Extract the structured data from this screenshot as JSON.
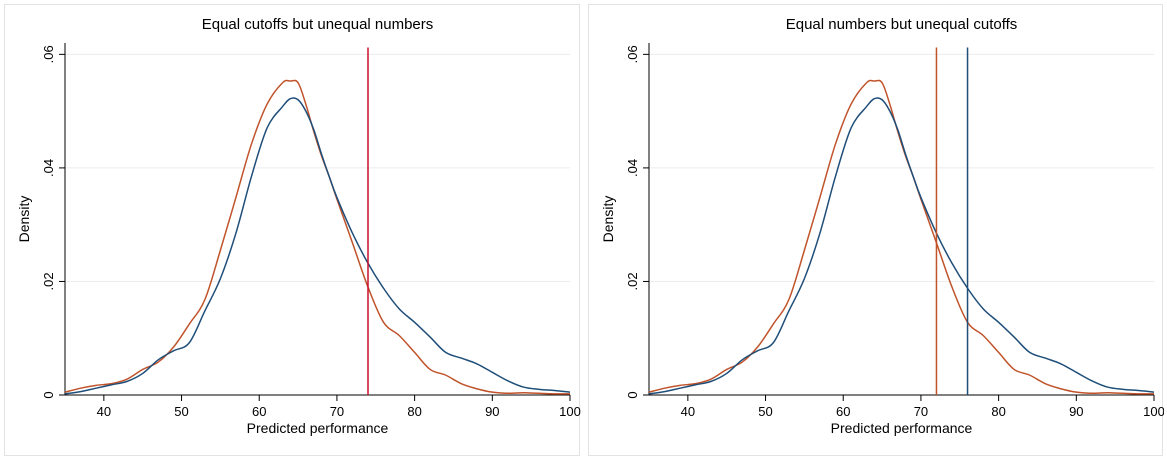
{
  "chart_data": [
    {
      "type": "line",
      "title": "Equal cutoffs but unequal numbers",
      "xlabel": "Predicted performance",
      "ylabel": "Density",
      "xlim": [
        35,
        100
      ],
      "ylim": [
        0,
        0.062
      ],
      "xticks": [
        40,
        50,
        60,
        70,
        80,
        90,
        100
      ],
      "xtick_labels": [
        "40",
        "50",
        "60",
        "70",
        "80",
        "90",
        "100"
      ],
      "yticks": [
        0,
        0.02,
        0.04,
        0.06
      ],
      "ytick_labels": [
        "0",
        ".02",
        ".04",
        ".06"
      ],
      "grid": "horizontal",
      "series": [
        {
          "color": "#c0532a",
          "x": [
            35,
            37,
            39,
            41,
            43,
            45,
            47,
            49,
            51,
            53,
            55,
            57,
            59,
            61,
            63,
            64,
            65,
            66,
            67,
            68,
            69,
            70,
            72,
            74,
            76,
            78,
            80,
            82,
            84,
            86,
            88,
            90,
            92,
            94,
            96,
            98,
            100
          ],
          "y": [
            0.0005,
            0.0012,
            0.0017,
            0.002,
            0.0028,
            0.0045,
            0.0058,
            0.0085,
            0.0125,
            0.0168,
            0.0255,
            0.0348,
            0.0442,
            0.0512,
            0.055,
            0.0553,
            0.055,
            0.0512,
            0.0465,
            0.0422,
            0.0385,
            0.0345,
            0.0268,
            0.019,
            0.0128,
            0.0105,
            0.0075,
            0.0045,
            0.0035,
            0.002,
            0.0011,
            0.0005,
            0.0003,
            0.0004,
            0.0003,
            0.0002,
            0.0002
          ]
        },
        {
          "color": "#1f4e79",
          "x": [
            35,
            37,
            39,
            41,
            43,
            45,
            47,
            49,
            51,
            53,
            55,
            57,
            59,
            61,
            63,
            64,
            65,
            66,
            67,
            68,
            69,
            70,
            72,
            74,
            76,
            78,
            80,
            82,
            84,
            86,
            88,
            90,
            92,
            94,
            96,
            98,
            100
          ],
          "y": [
            0.0002,
            0.0006,
            0.0012,
            0.0018,
            0.0024,
            0.0038,
            0.0062,
            0.0078,
            0.0092,
            0.0148,
            0.0205,
            0.0285,
            0.0385,
            0.047,
            0.0508,
            0.0522,
            0.052,
            0.05,
            0.0468,
            0.0425,
            0.0385,
            0.0348,
            0.0285,
            0.0232,
            0.0188,
            0.0152,
            0.0128,
            0.0102,
            0.0075,
            0.0065,
            0.0055,
            0.004,
            0.0025,
            0.0014,
            0.001,
            0.0008,
            0.0005
          ]
        }
      ],
      "vlines": [
        {
          "x": 74,
          "color": "#c8102e"
        }
      ]
    },
    {
      "type": "line",
      "title": "Equal numbers but unequal cutoffs",
      "xlabel": "Predicted performance",
      "ylabel": "Density",
      "xlim": [
        35,
        100
      ],
      "ylim": [
        0,
        0.062
      ],
      "xticks": [
        40,
        50,
        60,
        70,
        80,
        90,
        100
      ],
      "xtick_labels": [
        "40",
        "50",
        "60",
        "70",
        "80",
        "90",
        "100"
      ],
      "yticks": [
        0,
        0.02,
        0.04,
        0.06
      ],
      "ytick_labels": [
        "0",
        ".02",
        ".04",
        ".06"
      ],
      "grid": "horizontal",
      "series": [
        {
          "color": "#c0532a",
          "x": [
            35,
            37,
            39,
            41,
            43,
            45,
            47,
            49,
            51,
            53,
            55,
            57,
            59,
            61,
            63,
            64,
            65,
            66,
            67,
            68,
            69,
            70,
            72,
            74,
            76,
            78,
            80,
            82,
            84,
            86,
            88,
            90,
            92,
            94,
            96,
            98,
            100
          ],
          "y": [
            0.0005,
            0.0012,
            0.0017,
            0.002,
            0.0028,
            0.0045,
            0.0058,
            0.0085,
            0.0125,
            0.0168,
            0.0255,
            0.0348,
            0.0442,
            0.0512,
            0.055,
            0.0553,
            0.055,
            0.0512,
            0.0465,
            0.0422,
            0.0385,
            0.0345,
            0.0268,
            0.019,
            0.0128,
            0.0105,
            0.0075,
            0.0045,
            0.0035,
            0.002,
            0.0011,
            0.0005,
            0.0003,
            0.0004,
            0.0003,
            0.0002,
            0.0002
          ]
        },
        {
          "color": "#1f4e79",
          "x": [
            35,
            37,
            39,
            41,
            43,
            45,
            47,
            49,
            51,
            53,
            55,
            57,
            59,
            61,
            63,
            64,
            65,
            66,
            67,
            68,
            69,
            70,
            72,
            74,
            76,
            78,
            80,
            82,
            84,
            86,
            88,
            90,
            92,
            94,
            96,
            98,
            100
          ],
          "y": [
            0.0002,
            0.0006,
            0.0012,
            0.0018,
            0.0024,
            0.0038,
            0.0062,
            0.0078,
            0.0092,
            0.0148,
            0.0205,
            0.0285,
            0.0385,
            0.047,
            0.0508,
            0.0522,
            0.052,
            0.05,
            0.0468,
            0.0425,
            0.0385,
            0.0348,
            0.0285,
            0.0232,
            0.0188,
            0.0152,
            0.0128,
            0.0102,
            0.0075,
            0.0065,
            0.0055,
            0.004,
            0.0025,
            0.0014,
            0.001,
            0.0008,
            0.0005
          ]
        }
      ],
      "vlines": [
        {
          "x": 72,
          "color": "#c0532a"
        },
        {
          "x": 76,
          "color": "#1f4e79"
        }
      ]
    }
  ]
}
